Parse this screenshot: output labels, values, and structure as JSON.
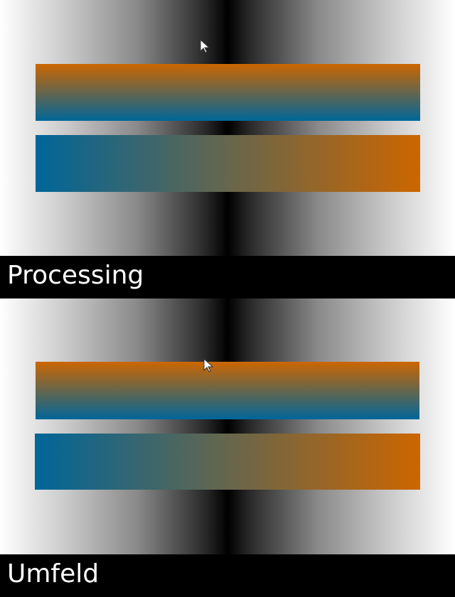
{
  "sections": [
    {
      "label": "Processing",
      "bars": {
        "vertical_gradient": {
          "top_color": "#cc6600",
          "bottom_color": "#006699"
        },
        "horizontal_gradient": {
          "left_color": "#006699",
          "right_color": "#cc6600"
        }
      },
      "cursor": "cursor-arrow-icon"
    },
    {
      "label": "Umfeld",
      "bars": {
        "vertical_gradient": {
          "top_color": "#cc6600",
          "bottom_color": "#006699"
        },
        "horizontal_gradient": {
          "left_color": "#006699",
          "right_color": "#cc6600"
        }
      },
      "cursor": "cursor-arrow-icon"
    }
  ],
  "background": {
    "edge_color": "#ffffff",
    "center_color": "#000000"
  }
}
